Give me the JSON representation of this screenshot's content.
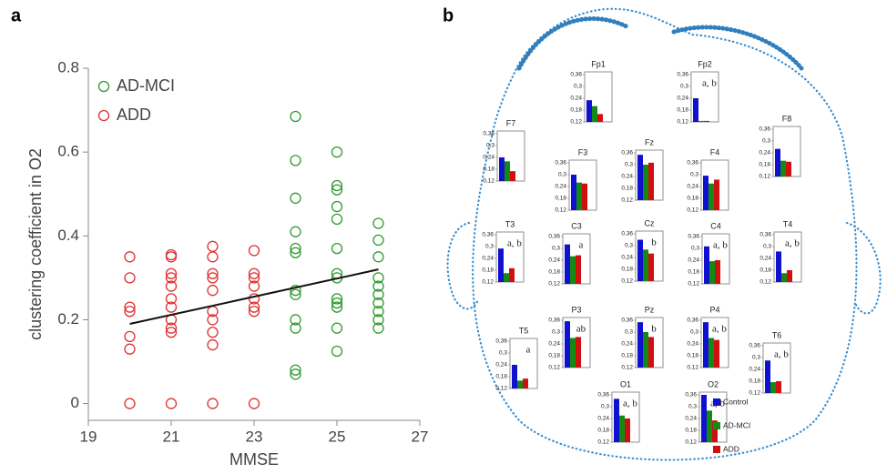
{
  "chart_data": [
    {
      "type": "scatter",
      "panel_label": "a",
      "x_label": "MMSE",
      "y_label": "clustering coefficient in O2",
      "xlim": [
        19,
        27
      ],
      "xticks": [
        19,
        21,
        23,
        25,
        27
      ],
      "ylim": [
        -0.04,
        0.8
      ],
      "yticks": [
        0,
        0.2,
        0.4,
        0.6,
        0.8
      ],
      "series": [
        {
          "name": "AD-MCI",
          "color": "#2e9a2e",
          "x": [
            24,
            24,
            24,
            24,
            24,
            24,
            24,
            24,
            24,
            24,
            24,
            24,
            25,
            25,
            25,
            25,
            25,
            25,
            25,
            25,
            25,
            25,
            25,
            25,
            25,
            26,
            26,
            26,
            26,
            26,
            26,
            26,
            26,
            26,
            26
          ],
          "values": [
            0.685,
            0.58,
            0.49,
            0.41,
            0.37,
            0.36,
            0.27,
            0.26,
            0.2,
            0.18,
            0.08,
            0.07,
            0.6,
            0.52,
            0.51,
            0.47,
            0.44,
            0.37,
            0.31,
            0.3,
            0.25,
            0.24,
            0.23,
            0.18,
            0.125,
            0.43,
            0.39,
            0.35,
            0.3,
            0.28,
            0.26,
            0.24,
            0.22,
            0.2,
            0.18
          ]
        },
        {
          "name": "ADD",
          "color": "#e03030",
          "x": [
            20,
            20,
            20,
            20,
            20,
            20,
            20,
            21,
            21,
            21,
            21,
            21,
            21,
            21,
            21,
            21,
            21,
            21,
            22,
            22,
            22,
            22,
            22,
            22,
            22,
            22,
            22,
            22,
            23,
            23,
            23,
            23,
            23,
            23,
            23,
            23
          ],
          "values": [
            0.35,
            0.3,
            0.23,
            0.22,
            0.16,
            0.13,
            0,
            0.355,
            0.35,
            0.31,
            0.3,
            0.28,
            0.25,
            0.23,
            0.2,
            0.18,
            0.17,
            0,
            0.375,
            0.35,
            0.31,
            0.3,
            0.27,
            0.22,
            0.2,
            0.17,
            0.14,
            0,
            0.365,
            0.31,
            0.3,
            0.28,
            0.25,
            0.23,
            0.22,
            0
          ]
        }
      ],
      "trend_line": {
        "x": [
          20,
          26
        ],
        "values": [
          0.19,
          0.32
        ],
        "color": "#111111"
      }
    },
    {
      "type": "small-multiple-bar",
      "panel_label": "b",
      "ylim": [
        0.12,
        0.36
      ],
      "yticks": [
        {
          "value": 0.12,
          "label": "0,12"
        },
        {
          "value": 0.18,
          "label": "0,18"
        },
        {
          "value": 0.24,
          "label": "0,24"
        },
        {
          "value": 0.3,
          "label": "0,3"
        },
        {
          "value": 0.36,
          "label": "0,36"
        }
      ],
      "series": [
        {
          "name": "Control",
          "color": "#1010d0"
        },
        {
          "name": "AD-MCI",
          "color": "#138a13"
        },
        {
          "name": "ADD",
          "color": "#d01010"
        }
      ],
      "panels": [
        {
          "title": "Fp1",
          "values": [
            0.23,
            0.2,
            0.16
          ]
        },
        {
          "title": "Fp2",
          "values": [
            0.24,
            0.125,
            0.125
          ],
          "annotation": "a, b"
        },
        {
          "title": "F7",
          "values": [
            0.24,
            0.22,
            0.17
          ]
        },
        {
          "title": "F8",
          "values": [
            0.26,
            0.2,
            0.195
          ]
        },
        {
          "title": "F3",
          "values": [
            0.3,
            0.26,
            0.255
          ]
        },
        {
          "title": "Fz",
          "values": [
            0.35,
            0.3,
            0.31
          ]
        },
        {
          "title": "F4",
          "values": [
            0.295,
            0.255,
            0.275
          ]
        },
        {
          "title": "T3",
          "values": [
            0.29,
            0.165,
            0.19
          ],
          "annotation": "a, b"
        },
        {
          "title": "C3",
          "values": [
            0.32,
            0.26,
            0.265
          ],
          "annotation": "a"
        },
        {
          "title": "Cz",
          "values": [
            0.33,
            0.28,
            0.26
          ],
          "annotation": "b"
        },
        {
          "title": "C4",
          "values": [
            0.31,
            0.235,
            0.24
          ],
          "annotation": "a, b"
        },
        {
          "title": "T4",
          "values": [
            0.275,
            0.165,
            0.18
          ],
          "annotation": "a, b"
        },
        {
          "title": "T5",
          "values": [
            0.24,
            0.16,
            0.17
          ],
          "annotation": "a"
        },
        {
          "title": "P3",
          "values": [
            0.355,
            0.27,
            0.275
          ],
          "annotation": "ab"
        },
        {
          "title": "Pz",
          "values": [
            0.35,
            0.3,
            0.275
          ],
          "annotation": "b"
        },
        {
          "title": "P4",
          "values": [
            0.35,
            0.27,
            0.26
          ],
          "annotation": "a, b"
        },
        {
          "title": "T6",
          "values": [
            0.285,
            0.175,
            0.18
          ],
          "annotation": "a, b"
        },
        {
          "title": "O1",
          "values": [
            0.34,
            0.255,
            0.24
          ],
          "annotation": "a, b"
        },
        {
          "title": "O2",
          "values": [
            0.36,
            0.28,
            0.23
          ],
          "annotation": "a, b"
        }
      ]
    }
  ]
}
